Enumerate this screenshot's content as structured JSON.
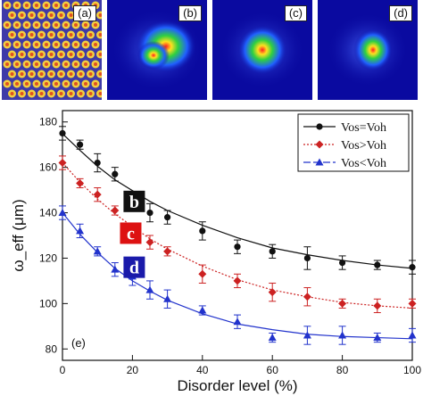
{
  "panels": {
    "a": {
      "label": "(a)"
    },
    "b": {
      "label": "(b)"
    },
    "c": {
      "label": "(c)"
    },
    "d": {
      "label": "(d)"
    }
  },
  "chart_data": {
    "type": "line",
    "panel_label": "(e)",
    "xlabel": "Disorder level (%)",
    "ylabel": "ω_eff (μm)",
    "xlim": [
      0,
      100
    ],
    "ylim": [
      75,
      185
    ],
    "xticks": [
      0,
      20,
      40,
      60,
      80,
      100
    ],
    "yticks": [
      80,
      100,
      120,
      140,
      160,
      180
    ],
    "legend_position": "top-right",
    "series": [
      {
        "name": "Vos=Voh",
        "color": "#111111",
        "marker": "circle",
        "line": "solid",
        "tag": "b",
        "tag_color": "#111111",
        "x": [
          0,
          5,
          10,
          15,
          25,
          30,
          40,
          50,
          60,
          70,
          80,
          90,
          100
        ],
        "y": [
          175,
          170,
          162,
          157,
          140,
          138,
          132,
          125,
          123,
          120,
          118,
          117,
          116
        ],
        "err": [
          3,
          2,
          4,
          3,
          4,
          3,
          4,
          3,
          3,
          5,
          3,
          2,
          3
        ],
        "fit": [
          174.8,
          167.5,
          160.5,
          154.5,
          145.0,
          141.0,
          134.5,
          129.0,
          124.5,
          121.5,
          119.0,
          117.0,
          115.5
        ]
      },
      {
        "name": "Vos>Voh",
        "color": "#cc2222",
        "marker": "diamond",
        "line": "dotted",
        "tag": "c",
        "tag_color": "#dd1111",
        "x": [
          0,
          5,
          10,
          15,
          25,
          30,
          40,
          50,
          60,
          70,
          80,
          90,
          100
        ],
        "y": [
          162,
          153,
          148,
          141,
          127,
          123,
          113,
          110,
          105,
          103,
          100,
          99,
          100
        ],
        "err": [
          3,
          2,
          3,
          2,
          3,
          2,
          4,
          3,
          4,
          4,
          2,
          3,
          2
        ],
        "fit": [
          162.0,
          153.5,
          146.0,
          139.5,
          128.5,
          124.0,
          116.5,
          110.5,
          106.0,
          103.0,
          100.5,
          99.0,
          98.0
        ]
      },
      {
        "name": "Vos<Voh",
        "color": "#2233cc",
        "marker": "triangle",
        "line": "solid",
        "tag": "d",
        "tag_color": "#1a1aaa",
        "x": [
          0,
          5,
          10,
          15,
          20,
          25,
          30,
          40,
          50,
          60,
          70,
          80,
          90,
          100
        ],
        "y": [
          140,
          132,
          123,
          115,
          112,
          106,
          102,
          97,
          92,
          85,
          86,
          86,
          85,
          86
        ],
        "err": [
          3,
          3,
          2,
          3,
          4,
          4,
          4,
          2,
          3,
          2,
          4,
          4,
          2,
          3
        ],
        "fit": [
          140.0,
          130.5,
          122.5,
          115.5,
          110.0,
          105.5,
          101.5,
          95.5,
          91.0,
          88.5,
          86.5,
          85.5,
          85.0,
          84.5
        ]
      }
    ]
  }
}
